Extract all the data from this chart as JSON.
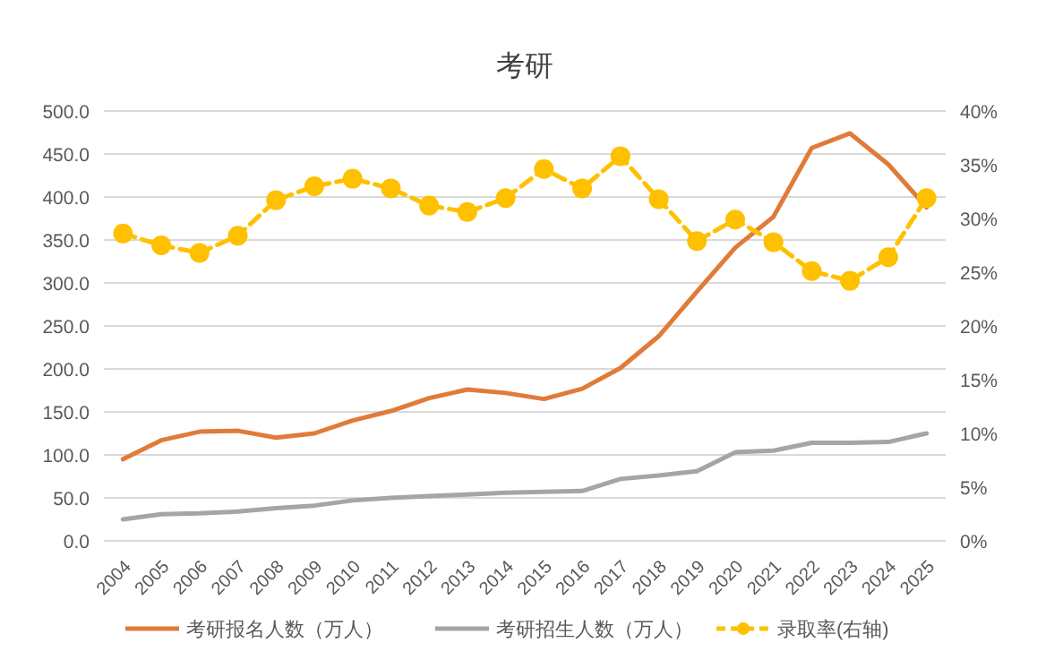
{
  "chart_data": {
    "type": "line",
    "title": "考研",
    "categories": [
      "2004",
      "2005",
      "2006",
      "2007",
      "2008",
      "2009",
      "2010",
      "2011",
      "2012",
      "2013",
      "2014",
      "2015",
      "2016",
      "2017",
      "2018",
      "2019",
      "2020",
      "2021",
      "2022",
      "2023",
      "2024",
      "2025"
    ],
    "series": [
      {
        "name": "考研报名人数（万人）",
        "color": "#e07b39",
        "values": [
          95,
          117,
          127,
          128,
          120,
          125,
          140,
          151,
          166,
          176,
          172,
          165,
          177,
          201,
          238,
          290,
          341,
          377,
          457,
          474,
          438,
          388
        ]
      },
      {
        "name": "考研招生人数（万人）",
        "color": "#a5a5a5",
        "values": [
          25,
          31,
          32,
          34,
          38,
          41,
          47,
          50,
          52,
          54,
          56,
          57,
          58,
          72,
          76,
          81,
          103,
          105,
          114,
          114,
          115,
          125
        ]
      },
      {
        "name": "录取率(右轴)",
        "color": "#ffc000",
        "axis": "y2",
        "marker": "circle",
        "line_style": "dashed",
        "values": [
          28.6,
          27.5,
          26.8,
          28.4,
          31.7,
          33.0,
          33.7,
          32.8,
          31.2,
          30.6,
          31.9,
          34.6,
          32.8,
          35.8,
          31.8,
          27.9,
          29.9,
          27.8,
          25.1,
          24.2,
          26.4,
          31.9
        ]
      }
    ],
    "ylim": [
      0,
      500
    ],
    "yticks": [
      {
        "value": 0,
        "label": "0.0"
      },
      {
        "value": 50,
        "label": "50.0"
      },
      {
        "value": 100,
        "label": "100.0"
      },
      {
        "value": 150,
        "label": "150.0"
      },
      {
        "value": 200,
        "label": "200.0"
      },
      {
        "value": 250,
        "label": "250.0"
      },
      {
        "value": 300,
        "label": "300.0"
      },
      {
        "value": 350,
        "label": "350.0"
      },
      {
        "value": 400,
        "label": "400.0"
      },
      {
        "value": 450,
        "label": "450.0"
      },
      {
        "value": 500,
        "label": "500.0"
      }
    ],
    "y2lim": [
      0,
      40
    ],
    "y2ticks": [
      {
        "value": 0,
        "label": "0%"
      },
      {
        "value": 5,
        "label": "5%"
      },
      {
        "value": 10,
        "label": "10%"
      },
      {
        "value": 15,
        "label": "15%"
      },
      {
        "value": 20,
        "label": "20%"
      },
      {
        "value": 25,
        "label": "25%"
      },
      {
        "value": 30,
        "label": "30%"
      },
      {
        "value": 35,
        "label": "35%"
      },
      {
        "value": 40,
        "label": "40%"
      }
    ],
    "grid": "y",
    "legend": "bottom"
  }
}
